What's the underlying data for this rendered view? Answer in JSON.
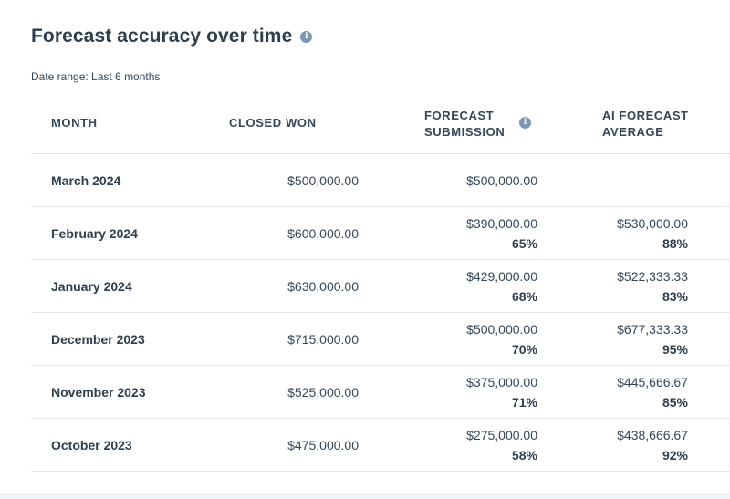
{
  "header": {
    "title": "Forecast accuracy over time",
    "date_range": "Date range: Last 6 months"
  },
  "table": {
    "columns": {
      "month": "MONTH",
      "closed_won": "CLOSED WON",
      "forecast_submission": "FORECAST SUBMISSION",
      "ai_forecast_average": "AI FORECAST AVERAGE"
    },
    "rows": [
      {
        "month": "March 2024",
        "closed_won": "$500,000.00",
        "forecast_value": "$500,000.00",
        "forecast_pct": "",
        "ai_value": "—",
        "ai_pct": ""
      },
      {
        "month": "February 2024",
        "closed_won": "$600,000.00",
        "forecast_value": "$390,000.00",
        "forecast_pct": "65%",
        "ai_value": "$530,000.00",
        "ai_pct": "88%"
      },
      {
        "month": "January 2024",
        "closed_won": "$630,000.00",
        "forecast_value": "$429,000.00",
        "forecast_pct": "68%",
        "ai_value": "$522,333.33",
        "ai_pct": "83%"
      },
      {
        "month": "December 2023",
        "closed_won": "$715,000.00",
        "forecast_value": "$500,000.00",
        "forecast_pct": "70%",
        "ai_value": "$677,333.33",
        "ai_pct": "95%"
      },
      {
        "month": "November 2023",
        "closed_won": "$525,000.00",
        "forecast_value": "$375,000.00",
        "forecast_pct": "71%",
        "ai_value": "$445,666.67",
        "ai_pct": "85%"
      },
      {
        "month": "October 2023",
        "closed_won": "$475,000.00",
        "forecast_value": "$275,000.00",
        "forecast_pct": "58%",
        "ai_value": "$438,666.67",
        "ai_pct": "92%"
      }
    ]
  },
  "icons": {
    "title_info": "info-icon",
    "column_info": "info-icon"
  },
  "colors": {
    "text_primary": "#33475b",
    "text_heading": "#2e3f50",
    "info_icon": "#7c98b6",
    "row_divider": "#e5e9ef"
  }
}
